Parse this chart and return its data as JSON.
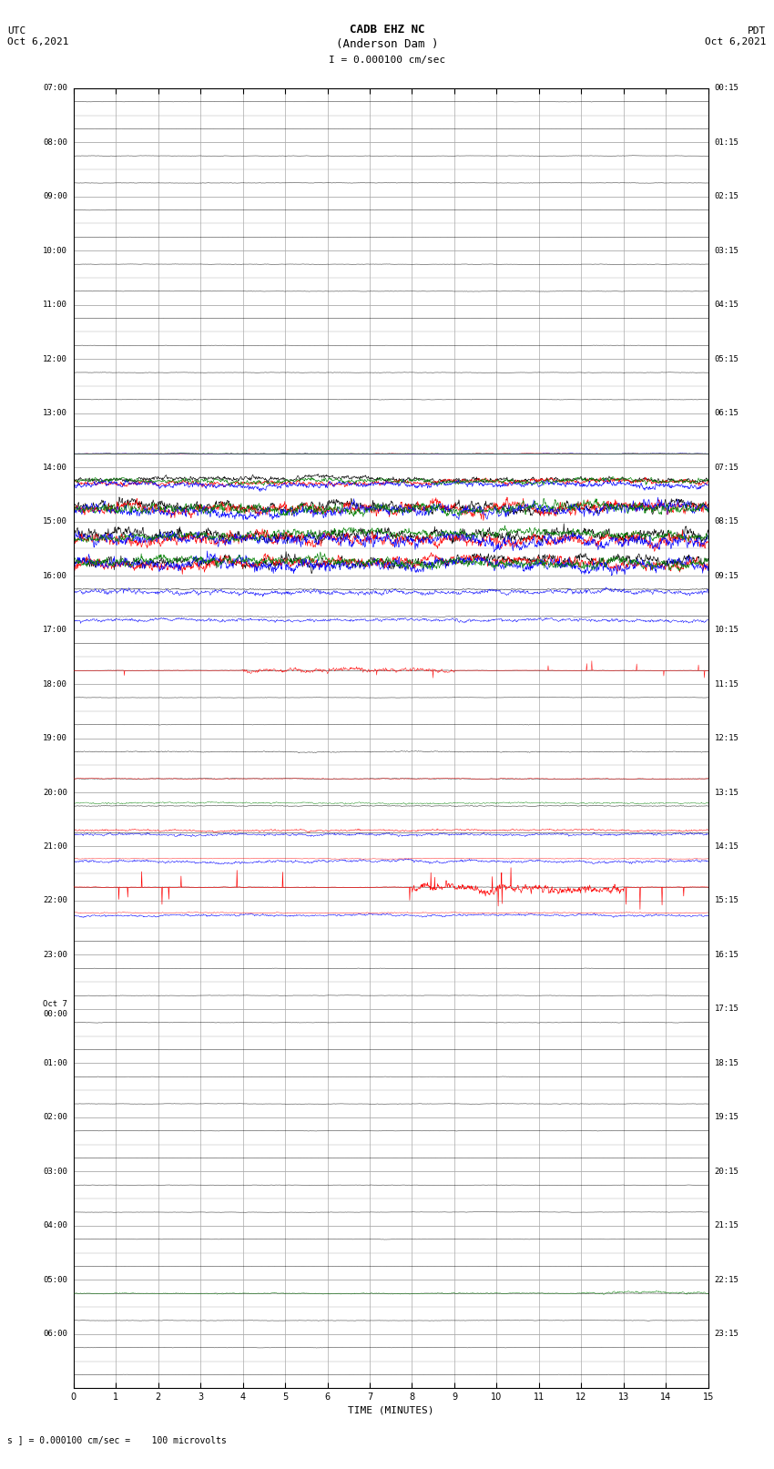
{
  "title_line1": "CADB EHZ NC",
  "title_line2": "(Anderson Dam )",
  "scale_label": "I = 0.000100 cm/sec",
  "left_date_label": "UTC\nOct 6,2021",
  "right_date_label": "PDT\nOct 6,2021",
  "bottom_label": "TIME (MINUTES)",
  "bottom_note": "s ] = 0.000100 cm/sec =    100 microvolts",
  "background_color": "#ffffff",
  "grid_color": "#aaaaaa",
  "line_colors": [
    "black",
    "red",
    "blue",
    "green"
  ],
  "fig_width": 8.5,
  "fig_height": 16.13,
  "n_rows": 48,
  "utc_labels": [
    "07:00",
    "",
    "08:00",
    "",
    "09:00",
    "",
    "10:00",
    "",
    "11:00",
    "",
    "12:00",
    "",
    "13:00",
    "",
    "14:00",
    "",
    "15:00",
    "",
    "16:00",
    "",
    "17:00",
    "",
    "18:00",
    "",
    "19:00",
    "",
    "20:00",
    "",
    "21:00",
    "",
    "22:00",
    "",
    "23:00",
    "",
    "Oct 7\n00:00",
    "",
    "01:00",
    "",
    "02:00",
    "",
    "03:00",
    "",
    "04:00",
    "",
    "05:00",
    "",
    "06:00",
    ""
  ],
  "pdt_labels": [
    "00:15",
    "",
    "01:15",
    "",
    "02:15",
    "",
    "03:15",
    "",
    "04:15",
    "",
    "05:15",
    "",
    "06:15",
    "",
    "07:15",
    "",
    "08:15",
    "",
    "09:15",
    "",
    "10:15",
    "",
    "11:15",
    "",
    "12:15",
    "",
    "13:15",
    "",
    "14:15",
    "",
    "15:15",
    "",
    "16:15",
    "",
    "17:15",
    "",
    "18:15",
    "",
    "19:15",
    "",
    "20:15",
    "",
    "21:15",
    "",
    "22:15",
    "",
    "23:15",
    ""
  ],
  "x_ticks": [
    0,
    1,
    2,
    3,
    4,
    5,
    6,
    7,
    8,
    9,
    10,
    11,
    12,
    13,
    14,
    15
  ]
}
